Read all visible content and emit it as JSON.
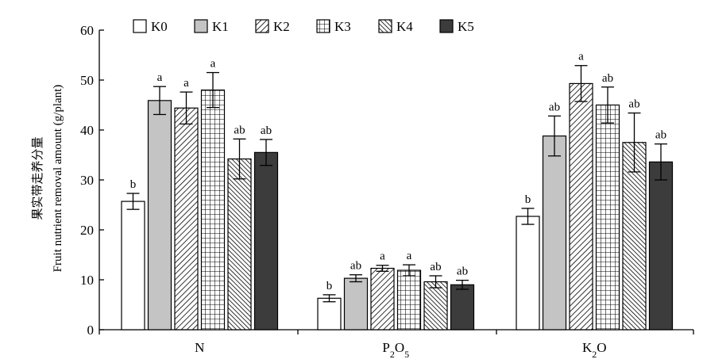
{
  "chart_data": {
    "type": "bar",
    "title": "",
    "ylabel_cn": "果实带走养分量",
    "ylabel_en": "Fruit nutrient removal amount (g/plant)",
    "xlabel": "",
    "ylim": [
      0,
      60
    ],
    "yticks": [
      "0",
      "10",
      "20",
      "30",
      "40",
      "50",
      "60"
    ],
    "ytick_values": [
      0,
      10,
      20,
      30,
      40,
      50,
      60
    ],
    "legend_position": "top",
    "categories": [
      {
        "main": "N",
        "sub": "",
        "tail": "",
        "sub2": ""
      },
      {
        "main": "P",
        "sub": "2",
        "tail": "O",
        "sub2": "5"
      },
      {
        "main": "K",
        "sub": "2",
        "tail": "O",
        "sub2": ""
      }
    ],
    "series": [
      {
        "name": "K0",
        "pattern": "white",
        "values": [
          25.7,
          6.3,
          22.7
        ],
        "errors": [
          1.6,
          0.7,
          1.6
        ],
        "letters": [
          "b",
          "b",
          "b"
        ]
      },
      {
        "name": "K1",
        "pattern": "grey",
        "values": [
          45.9,
          10.3,
          38.8
        ],
        "errors": [
          2.8,
          0.7,
          4.0
        ],
        "letters": [
          "a",
          "ab",
          "ab"
        ]
      },
      {
        "name": "K2",
        "pattern": "hatch",
        "values": [
          44.4,
          12.3,
          49.3
        ],
        "errors": [
          3.2,
          0.6,
          3.6
        ],
        "letters": [
          "a",
          "a",
          "a"
        ]
      },
      {
        "name": "K3",
        "pattern": "grid",
        "values": [
          48.0,
          11.9,
          45.0
        ],
        "errors": [
          3.5,
          1.1,
          3.6
        ],
        "letters": [
          "a",
          "a",
          "ab"
        ]
      },
      {
        "name": "K4",
        "pattern": "dense",
        "values": [
          34.2,
          9.6,
          37.5
        ],
        "errors": [
          4.0,
          1.2,
          5.9
        ],
        "letters": [
          "ab",
          "ab",
          "ab"
        ]
      },
      {
        "name": "K5",
        "pattern": "dark",
        "values": [
          35.5,
          9.0,
          33.6
        ],
        "errors": [
          2.6,
          0.9,
          3.6
        ],
        "letters": [
          "ab",
          "ab",
          "ab"
        ]
      }
    ],
    "colors": {
      "grey": "#c4c4c4",
      "dark": "#3c3c3c",
      "line": "#000000"
    }
  }
}
